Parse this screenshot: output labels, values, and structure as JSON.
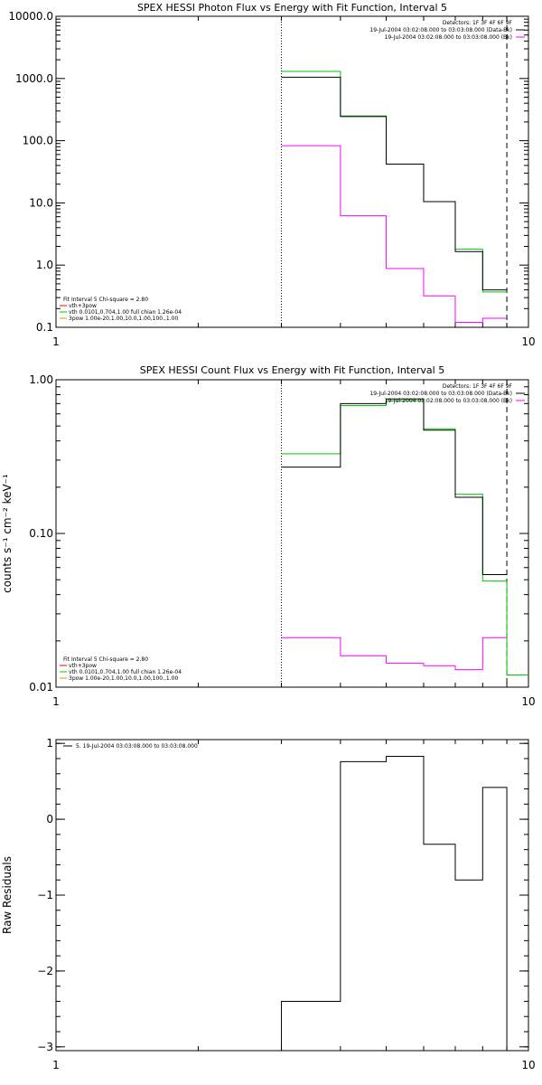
{
  "chart_data": [
    {
      "type": "line",
      "title": "SPEX HESSI Photon Flux vs Energy with Fit Function, Interval 5",
      "xlabel": "",
      "ylabel": "",
      "x_scale": "log",
      "y_scale": "log",
      "xlim": [
        1,
        10
      ],
      "ylim": [
        0.1,
        10000
      ],
      "x_ticks": [
        {
          "v": 1,
          "label": "1"
        },
        {
          "v": 10,
          "label": "10"
        }
      ],
      "y_ticks": [
        {
          "v": 0.1,
          "label": "0.1"
        },
        {
          "v": 1,
          "label": "1.0"
        },
        {
          "v": 10,
          "label": "10.0"
        },
        {
          "v": 100,
          "label": "100.0"
        },
        {
          "v": 1000,
          "label": "1000.0"
        },
        {
          "v": 10000,
          "label": "10000.0"
        }
      ],
      "grid": false,
      "vlines": [
        {
          "x": 3.0,
          "style": "dotted"
        },
        {
          "x": 9.0,
          "style": "dashed"
        }
      ],
      "legend_upper": {
        "position": "top-right",
        "lines": [
          {
            "text": "Detectors: 1F 3F 4F 6F 9F",
            "color": ""
          },
          {
            "text": "19-Jul-2004 03:02:08.000 to 03:03:08.000 (Data-Bk)",
            "color": "#000000"
          },
          {
            "text": "19-Jul-2004 03:02:08.000 to 03:03:08.000 (Bk)",
            "color": "#ff00ff"
          }
        ]
      },
      "legend_lower": {
        "position": "bottom-left",
        "lines": [
          {
            "text": "Fit Interval 5   Chi-square = 2.80",
            "color": ""
          },
          {
            "text": "vth+3pow",
            "color": "#ff0000"
          },
          {
            "text": "vth 0.0101,0.704,1.00  full chian 1.26e-04",
            "color": "#00c800"
          },
          {
            "text": "3pow 1.00e-20,1.00,10.0,1.00,100.,1.00",
            "color": "#c8a000"
          }
        ]
      },
      "series": [
        {
          "style": "step",
          "color": "#00c800",
          "edges": [
            3.0,
            4.0,
            5.0,
            6.0,
            7.0,
            8.0,
            9.0
          ],
          "values": [
            1300,
            250,
            42,
            10.5,
            1.8,
            0.37
          ]
        },
        {
          "style": "step",
          "color": "#000000",
          "edges": [
            3.0,
            4.0,
            5.0,
            6.0,
            7.0,
            8.0,
            9.0
          ],
          "values": [
            1050,
            245,
            42,
            10.5,
            1.65,
            0.4
          ]
        },
        {
          "style": "step",
          "color": "#ff00ff",
          "edges": [
            3.0,
            4.0,
            5.0,
            6.0,
            7.0,
            8.0,
            9.0
          ],
          "values": [
            83,
            6.2,
            0.88,
            0.32,
            0.12,
            0.14
          ]
        }
      ]
    },
    {
      "type": "line",
      "title": "SPEX HESSI Count Flux vs Energy with Fit Function, Interval 5",
      "xlabel": "",
      "ylabel": "counts s⁻¹ cm⁻² keV⁻¹",
      "x_scale": "log",
      "y_scale": "log",
      "xlim": [
        1,
        10
      ],
      "ylim": [
        0.01,
        1.0
      ],
      "x_ticks": [
        {
          "v": 1,
          "label": "1"
        },
        {
          "v": 10,
          "label": "10"
        }
      ],
      "y_ticks": [
        {
          "v": 0.01,
          "label": "0.01"
        },
        {
          "v": 0.1,
          "label": "0.10"
        },
        {
          "v": 1.0,
          "label": "1.00"
        }
      ],
      "grid": false,
      "vlines": [
        {
          "x": 3.0,
          "style": "dotted"
        },
        {
          "x": 9.0,
          "style": "dashed"
        }
      ],
      "legend_upper": {
        "position": "top-right",
        "lines": [
          {
            "text": "Detectors: 1F 3F 4F 6F 9F",
            "color": ""
          },
          {
            "text": "19-Jul-2004 03:02:08.000 to 03:03:08.000 (Data-Bk)",
            "color": "#000000"
          },
          {
            "text": "19-Jul-2004 03:02:08.000 to 03:03:08.000 (Bk)",
            "color": "#ff00ff"
          }
        ]
      },
      "legend_lower": {
        "position": "bottom-left",
        "lines": [
          {
            "text": "Fit Interval 5   Chi-square = 2.80",
            "color": ""
          },
          {
            "text": "vth+3pow",
            "color": "#ff0000"
          },
          {
            "text": "vth 0.0101,0.704,1.00  full chian 1.26e-04",
            "color": "#00c800"
          },
          {
            "text": "3pow 1.00e-20,1.00,10.0,1.00,100.,1.00",
            "color": "#c8a000"
          }
        ]
      },
      "series": [
        {
          "style": "step",
          "color": "#00c800",
          "edges": [
            3.0,
            4.0,
            5.0,
            6.0,
            7.0,
            8.0,
            9.0,
            10.0
          ],
          "values": [
            0.33,
            0.68,
            0.73,
            0.48,
            0.18,
            0.049,
            0.012
          ]
        },
        {
          "style": "step",
          "color": "#000000",
          "edges": [
            3.0,
            4.0,
            5.0,
            6.0,
            7.0,
            8.0,
            9.0
          ],
          "values": [
            0.27,
            0.7,
            0.75,
            0.47,
            0.172,
            0.054
          ]
        },
        {
          "style": "step",
          "color": "#ff00ff",
          "edges": [
            3.0,
            4.0,
            5.0,
            6.0,
            7.0,
            8.0,
            9.0
          ],
          "values": [
            0.021,
            0.016,
            0.0143,
            0.0138,
            0.013,
            0.021
          ]
        }
      ]
    },
    {
      "type": "line",
      "title": "",
      "xlabel": "",
      "ylabel": "Raw Residuals",
      "x_scale": "log",
      "y_scale": "linear",
      "xlim": [
        1,
        10
      ],
      "ylim": [
        -3.05,
        1.05
      ],
      "x_ticks": [
        {
          "v": 1,
          "label": "1"
        },
        {
          "v": 10,
          "label": "10"
        }
      ],
      "y_ticks": [
        {
          "v": 1,
          "label": "1"
        },
        {
          "v": 0,
          "label": "0"
        },
        {
          "v": -1,
          "label": "−1"
        },
        {
          "v": -2,
          "label": "−2"
        },
        {
          "v": -3,
          "label": "−3"
        }
      ],
      "grid": false,
      "vlines": [],
      "legend_upper": {
        "position": "top-left",
        "lines": [
          {
            "text": "5. 19-Jul-2004 03:03:08.000 to 03:03:08.000",
            "color": "#000000"
          }
        ]
      },
      "legend_lower": {
        "position": "",
        "lines": []
      },
      "series": [
        {
          "style": "step",
          "color": "#000000",
          "edges": [
            3.0,
            4.0,
            5.0,
            6.0,
            7.0,
            8.0,
            9.0
          ],
          "values": [
            -2.4,
            0.76,
            0.83,
            -0.33,
            -0.8,
            0.42
          ],
          "drop_to_floor": true
        }
      ]
    }
  ]
}
